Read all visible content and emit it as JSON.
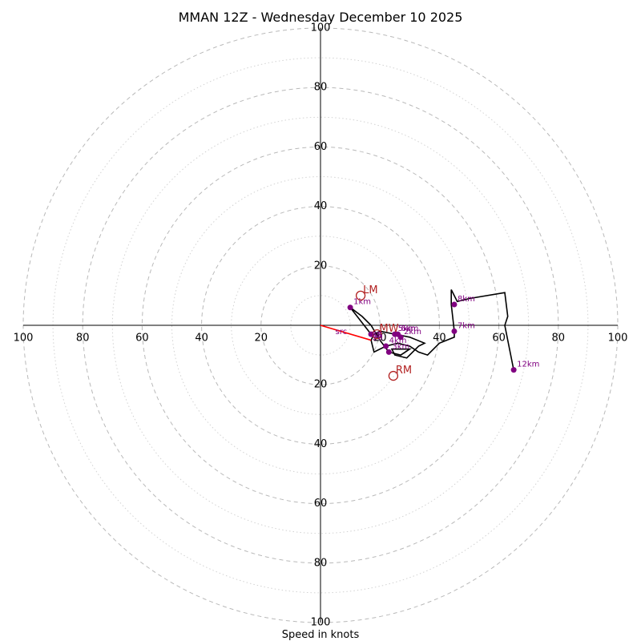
{
  "chart_data": {
    "type": "polar-hodograph",
    "title": "MMAN 12Z - Wednesday December 10 2025",
    "xlabel": "Speed in knots",
    "rmax": 100,
    "major_rings": [
      20,
      40,
      60,
      80,
      100
    ],
    "minor_rings": [
      10,
      30,
      50,
      70,
      90
    ],
    "axis_ticks": [
      20,
      40,
      60,
      80,
      100
    ],
    "hodograph": {
      "u": [
        17,
        10,
        14,
        17,
        20,
        23,
        27,
        30,
        24,
        25,
        29,
        33,
        35,
        30,
        20,
        18,
        17,
        18,
        22,
        26,
        30,
        33,
        36,
        40,
        45,
        45,
        44,
        44,
        46,
        50,
        62,
        63,
        62,
        65
      ],
      "v": [
        -3,
        6,
        3,
        0,
        -5,
        -9,
        -10,
        -8,
        -8,
        -10,
        -11,
        -7,
        -6,
        -4,
        -2,
        -3,
        -5,
        -9,
        -7,
        -6,
        -7,
        -9,
        -10,
        -6,
        -4,
        -2,
        7,
        12,
        8,
        9,
        11,
        3,
        0,
        -15
      ]
    },
    "height_markers": [
      {
        "label": "1km",
        "u": 10,
        "v": 6
      },
      {
        "label": "",
        "u": 17,
        "v": -3
      },
      {
        "label": "2km",
        "u": 27,
        "v": -4
      },
      {
        "label": "3km",
        "u": 23,
        "v": -9
      },
      {
        "label": "4km",
        "u": 22,
        "v": -7
      },
      {
        "label": "5km",
        "u": 25,
        "v": -3
      },
      {
        "label": "6km",
        "u": 26,
        "v": -3
      },
      {
        "label": "7km",
        "u": 45,
        "v": -2
      },
      {
        "label": "8km",
        "u": 45,
        "v": 7
      },
      {
        "label": "12km",
        "u": 65,
        "v": -15
      }
    ],
    "motion_vectors": [
      {
        "label": "LM",
        "u": 13.5,
        "v": 10
      },
      {
        "label": "RM",
        "u": 24.5,
        "v": -17
      },
      {
        "label": "MW",
        "u": 19,
        "v": -3
      }
    ],
    "extra_labels": [
      {
        "label": "src",
        "u": 5,
        "v": -3
      },
      {
        "label": "1S",
        "u": 17.5,
        "v": -4
      },
      {
        "label": "EB",
        "u": 17,
        "v": -4
      },
      {
        "label": "20",
        "u": 17.5,
        "v": -5
      }
    ],
    "shear_vector": {
      "u0": 0,
      "v0": 0,
      "u1": 17,
      "v1": -5
    }
  }
}
